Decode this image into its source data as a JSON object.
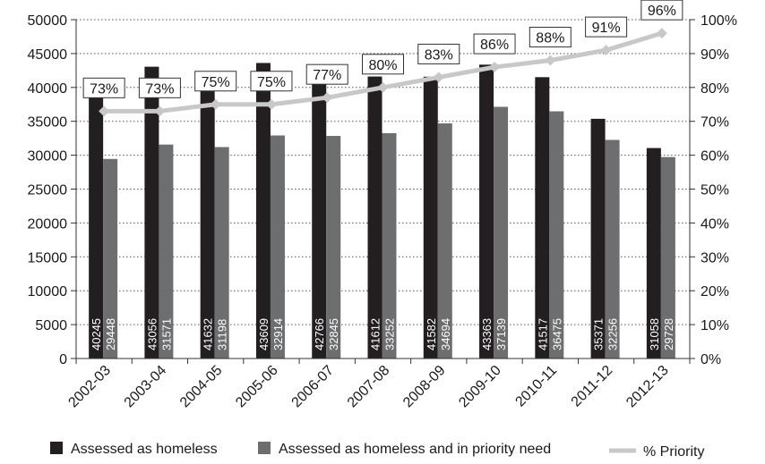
{
  "chart_data": {
    "type": "bar",
    "categories": [
      "2002-03",
      "2003-04",
      "2004-05",
      "2005-06",
      "2006-07",
      "2007-08",
      "2008-09",
      "2009-10",
      "2010-11",
      "2011-12",
      "2012-13"
    ],
    "series": [
      {
        "name": "Assessed as homeless",
        "values": [
          40245,
          43056,
          41632,
          43609,
          42766,
          41612,
          41582,
          43363,
          41517,
          35371,
          31058
        ],
        "labels": [
          "40245",
          "43056",
          "41632",
          "43609",
          "42766",
          "41612",
          "41582",
          "43363",
          "41517",
          "35371",
          "31058"
        ],
        "color": "#231f20",
        "type": "bar"
      },
      {
        "name": "Assessed as homeless and in priority need",
        "values": [
          29448,
          31571,
          31198,
          32914,
          32845,
          33252,
          34694,
          37139,
          36475,
          32256,
          29728
        ],
        "labels": [
          "29448",
          "31571",
          "31198",
          "32914",
          "32845",
          "33252",
          "34694",
          "37139",
          "36475",
          "32256",
          "29728"
        ],
        "color": "#6d6e70",
        "type": "bar"
      },
      {
        "name": "% Priority",
        "values": [
          73,
          73,
          75,
          75,
          77,
          80,
          83,
          86,
          88,
          91,
          96
        ],
        "labels": [
          "73%",
          "73%",
          "75%",
          "75%",
          "77%",
          "80%",
          "83%",
          "86%",
          "88%",
          "91%",
          "96%"
        ],
        "color": "#c8c8c8",
        "type": "line",
        "axis": "right"
      }
    ],
    "y_left": {
      "min": 0,
      "max": 50000,
      "ticks": [
        "0",
        "5000",
        "10000",
        "15000",
        "20000",
        "25000",
        "30000",
        "35000",
        "40000",
        "45000",
        "50000"
      ]
    },
    "y_right": {
      "min": 0,
      "max": 100,
      "ticks": [
        "0%",
        "10%",
        "20%",
        "30%",
        "40%",
        "50%",
        "60%",
        "70%",
        "80%",
        "90%",
        "100%"
      ]
    },
    "grid": "horizontal dotted",
    "legend_position": "bottom"
  }
}
